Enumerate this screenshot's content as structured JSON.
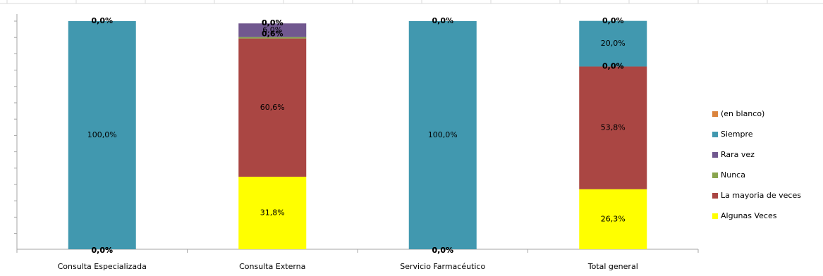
{
  "chart_data": {
    "type": "bar",
    "stacked": true,
    "normalized": true,
    "categories": [
      "Consulta Especializada",
      "Consulta Externa",
      "Servicio Farmacéutico",
      "Total general"
    ],
    "series": [
      {
        "name": "Algunas Veces",
        "color": "#FFFF00",
        "values": [
          0.0,
          31.8,
          0.0,
          26.3
        ],
        "labels": [
          "0,0%",
          "31,8%",
          "0,0%",
          "26,3%"
        ]
      },
      {
        "name": "La mayoria de veces",
        "color": "#AA4643",
        "values": [
          0.0,
          60.6,
          0.0,
          53.8
        ],
        "labels": [
          "0,0%",
          "60,6%",
          "0,0%",
          "53,8%"
        ]
      },
      {
        "name": "Nunca",
        "color": "#89A54E",
        "values": [
          0.0,
          0.6,
          0.0,
          0.0
        ],
        "labels": [
          "",
          "0,6%",
          "",
          "0,0%"
        ]
      },
      {
        "name": "Rara vez",
        "color": "#71588F",
        "values": [
          0.0,
          6.0,
          0.0,
          0.0
        ],
        "labels": [
          "",
          "6,0%",
          "",
          "0,0%"
        ]
      },
      {
        "name": "Siempre",
        "color": "#4198AF",
        "values": [
          100.0,
          0.0,
          100.0,
          20.0
        ],
        "labels": [
          "100,0%",
          "0,0%",
          "100,0%",
          "20,0%"
        ]
      },
      {
        "name": "(en blanco)",
        "color": "#DB843D",
        "values": [
          0.0,
          0.0,
          0.0,
          0.0
        ],
        "labels": [
          "0,0%",
          "0,0%",
          "0,0%",
          "0,0%"
        ]
      }
    ],
    "legend": {
      "position": "right",
      "entries": [
        "(en blanco)",
        "Siempre",
        "Rara vez",
        "Nunca",
        "La mayoria de veces",
        "Algunas Veces"
      ]
    },
    "ylim": [
      0,
      100
    ],
    "grid": false
  }
}
